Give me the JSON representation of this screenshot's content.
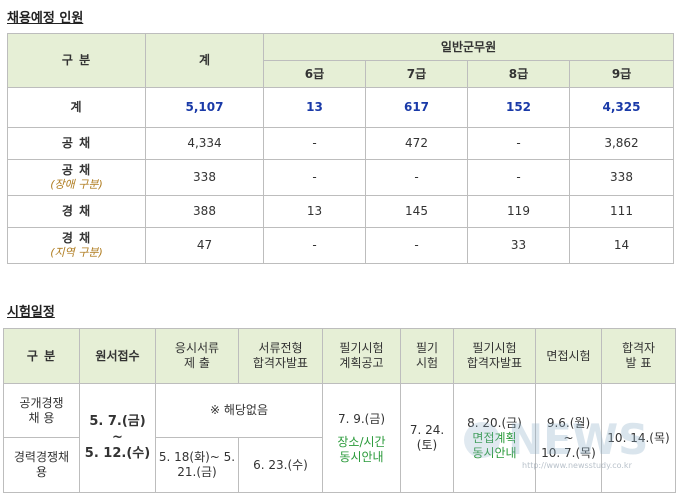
{
  "section1": {
    "title": "채용예정 인원",
    "header": {
      "category": "구  분",
      "total": "계",
      "group": "일반군무원",
      "grades": [
        "6급",
        "7급",
        "8급",
        "9급"
      ]
    },
    "rows": [
      {
        "label": "계",
        "sub": "",
        "total": "5,107",
        "g6": "13",
        "g7": "617",
        "g8": "152",
        "g9": "4,325"
      },
      {
        "label": "공 채",
        "sub": "",
        "total": "4,334",
        "g6": "-",
        "g7": "472",
        "g8": "-",
        "g9": "3,862"
      },
      {
        "label": "공 채",
        "sub": "(장애 구분)",
        "total": "338",
        "g6": "-",
        "g7": "-",
        "g8": "-",
        "g9": "338"
      },
      {
        "label": "경 채",
        "sub": "",
        "total": "388",
        "g6": "13",
        "g7": "145",
        "g8": "119",
        "g9": "111"
      },
      {
        "label": "경 채",
        "sub": "(지역 구분)",
        "total": "47",
        "g6": "-",
        "g7": "-",
        "g8": "33",
        "g9": "14"
      }
    ]
  },
  "section2": {
    "title": "시험일정",
    "headers": {
      "category": "구  분",
      "application": "원서접수",
      "docs_submit": [
        "응시서류",
        "제    출"
      ],
      "docs_pass": [
        "서류전형",
        "합격자발표"
      ],
      "written_notice": [
        "필기시험",
        "계획공고"
      ],
      "written": [
        "필기",
        "시험"
      ],
      "written_pass": [
        "필기시험",
        "합격자발표"
      ],
      "interview": "면접시험",
      "final": [
        "합격자",
        "발 표"
      ]
    },
    "open": {
      "label": [
        "공개경쟁",
        "채    용"
      ],
      "docs_na": "※ 해당없음"
    },
    "career": {
      "label": [
        "경력경쟁채",
        "용"
      ],
      "docs_submit": [
        "5. 18(화)~ 5.",
        "21.(금)"
      ],
      "docs_pass": "6. 23.(수)"
    },
    "shared": {
      "application": [
        "5. 7.(금)",
        "~",
        "5. 12.(수)"
      ],
      "written_notice": "7. 9.(금)",
      "written_notice_note": [
        "장소/시간",
        "동시안내"
      ],
      "written": "7. 24.(토)",
      "written_pass": "8. 20.(금)",
      "written_pass_note": [
        "면접계획",
        "동시안내"
      ],
      "interview": [
        "9.6.(월)",
        "~",
        "10. 7.(목)"
      ],
      "final": "10. 14.(목)"
    }
  },
  "watermark": {
    "brand": "NEWS",
    "url": "http://www.newsstudy.co.kr"
  }
}
